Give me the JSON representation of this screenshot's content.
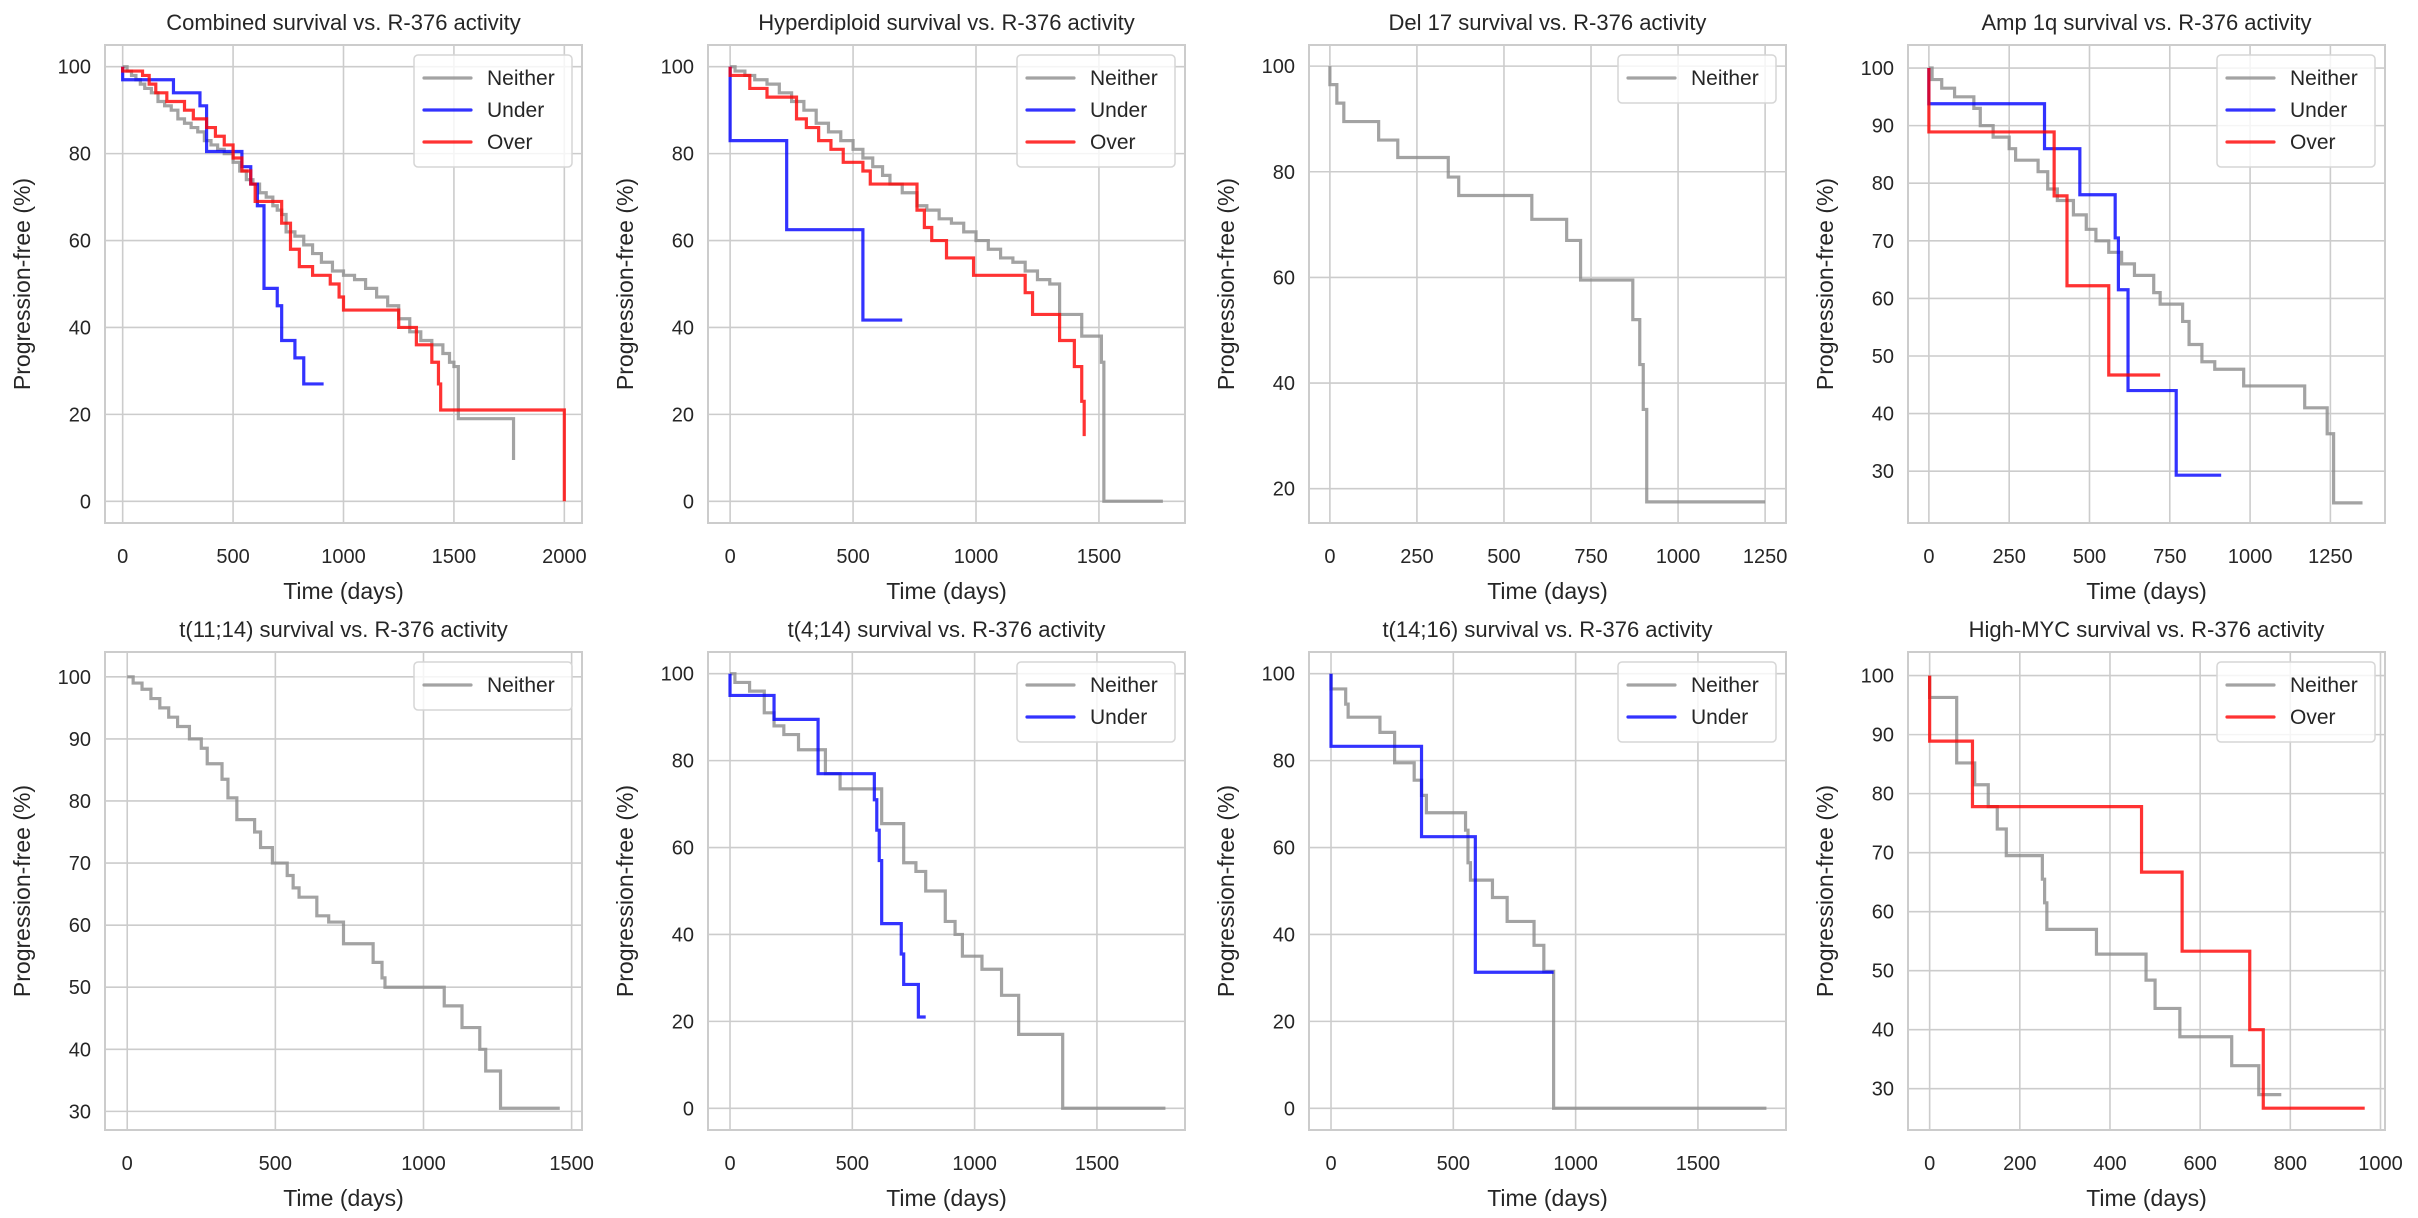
{
  "figure": {
    "colors": {
      "Neither": "#8c8c8c",
      "Under": "#0000ff",
      "Over": "#ff0000",
      "grid": "#cccccc",
      "spine": "#cccccc"
    }
  },
  "chart_data": [
    {
      "type": "line",
      "step": true,
      "title": "Combined survival vs. R-376 activity",
      "xlabel": "Time (days)",
      "ylabel": "Progression-free (%)",
      "xlim": [
        -80,
        2080
      ],
      "ylim": [
        -5,
        105
      ],
      "xticks": [
        0,
        500,
        1000,
        1500,
        2000
      ],
      "yticks": [
        0,
        20,
        40,
        60,
        80,
        100
      ],
      "grid": true,
      "legend": "top-right",
      "series": [
        {
          "name": "Neither",
          "x": [
            0,
            20,
            40,
            60,
            80,
            100,
            130,
            160,
            190,
            220,
            250,
            280,
            310,
            340,
            370,
            400,
            430,
            460,
            500,
            530,
            560,
            590,
            620,
            650,
            680,
            700,
            720,
            740,
            780,
            820,
            860,
            900,
            950,
            1000,
            1050,
            1100,
            1150,
            1200,
            1250,
            1300,
            1350,
            1400,
            1450,
            1480,
            1500,
            1520,
            1760,
            1770
          ],
          "y": [
            100,
            99,
            98,
            97,
            96,
            95,
            94,
            92,
            91,
            90,
            88,
            87,
            86,
            85,
            83,
            82,
            81,
            80,
            78,
            76,
            74,
            73,
            71,
            70,
            68,
            67,
            66,
            62,
            61,
            59,
            57,
            55,
            53,
            52,
            51,
            49,
            47,
            45,
            42,
            39,
            37,
            36,
            34,
            32,
            31,
            19,
            19,
            9.5
          ]
        },
        {
          "name": "Under",
          "x": [
            0,
            0,
            190,
            230,
            350,
            380,
            480,
            540,
            580,
            610,
            640,
            700,
            720,
            780,
            820,
            910
          ],
          "y": [
            100,
            97,
            97,
            94,
            91,
            80.5,
            80.5,
            77,
            73,
            68,
            49,
            45,
            37,
            33,
            27,
            27
          ]
        },
        {
          "name": "Over",
          "x": [
            0,
            0,
            90,
            120,
            150,
            200,
            280,
            320,
            380,
            420,
            460,
            500,
            540,
            580,
            600,
            700,
            720,
            760,
            800,
            860,
            940,
            980,
            1000,
            1200,
            1250,
            1330,
            1400,
            1430,
            1440,
            2000
          ],
          "y": [
            100,
            99,
            98,
            96,
            94,
            92,
            90,
            88,
            86,
            84,
            82,
            79,
            76,
            73,
            69,
            69,
            64,
            58,
            54,
            52,
            50,
            47,
            44,
            44,
            40,
            36,
            32,
            27,
            21,
            0
          ]
        }
      ]
    },
    {
      "type": "line",
      "step": true,
      "title": "Hyperdiploid survival vs. R-376 activity",
      "xlabel": "Time (days)",
      "ylabel": "Progression-free (%)",
      "xlim": [
        -90,
        1850
      ],
      "ylim": [
        -5,
        105
      ],
      "xticks": [
        0,
        500,
        1000,
        1500
      ],
      "yticks": [
        0,
        20,
        40,
        60,
        80,
        100
      ],
      "grid": true,
      "legend": "top-right",
      "series": [
        {
          "name": "Neither",
          "x": [
            0,
            20,
            60,
            100,
            150,
            200,
            250,
            300,
            350,
            400,
            450,
            500,
            540,
            580,
            620,
            650,
            700,
            760,
            800,
            850,
            900,
            950,
            1000,
            1050,
            1100,
            1150,
            1200,
            1250,
            1300,
            1340,
            1430,
            1510,
            1520,
            1760
          ],
          "y": [
            100,
            99,
            98,
            97,
            96,
            94,
            92,
            90,
            87,
            85,
            83,
            81,
            79,
            77,
            75,
            73,
            71,
            68,
            67,
            65,
            64,
            62,
            60,
            58,
            56,
            55,
            53,
            51,
            50,
            43,
            38,
            32,
            0,
            0
          ]
        },
        {
          "name": "Under",
          "x": [
            0,
            0,
            230,
            540,
            700
          ],
          "y": [
            100,
            83,
            62.5,
            41.7,
            41.7
          ]
        },
        {
          "name": "Over",
          "x": [
            0,
            0,
            80,
            150,
            270,
            310,
            360,
            410,
            460,
            540,
            570,
            760,
            790,
            820,
            880,
            990,
            1200,
            1230,
            1340,
            1400,
            1430,
            1440
          ],
          "y": [
            100,
            98,
            95,
            93,
            88,
            86,
            83,
            81,
            78,
            76,
            73,
            67,
            63,
            60,
            56,
            52,
            48,
            43,
            37,
            31,
            23,
            15
          ]
        }
      ]
    },
    {
      "type": "line",
      "step": true,
      "title": "Del 17 survival vs. R-376 activity",
      "xlabel": "Time (days)",
      "ylabel": "Progression-free (%)",
      "xlim": [
        -60,
        1310
      ],
      "ylim": [
        13.5,
        104
      ],
      "xticks": [
        0,
        250,
        500,
        750,
        1000,
        1250
      ],
      "yticks": [
        20,
        40,
        60,
        80,
        100
      ],
      "grid": true,
      "legend": "top-right",
      "series": [
        {
          "name": "Neither",
          "x": [
            0,
            0,
            20,
            40,
            140,
            195,
            340,
            370,
            580,
            680,
            720,
            870,
            890,
            900,
            910,
            1250
          ],
          "y": [
            100,
            96.5,
            93,
            89.5,
            86,
            82.7,
            79,
            75.5,
            71,
            67,
            59.5,
            52,
            43.5,
            35,
            17.5,
            17.5
          ]
        }
      ]
    },
    {
      "type": "line",
      "step": true,
      "title": "Amp 1q survival vs. R-376 activity",
      "xlabel": "Time (days)",
      "ylabel": "Progression-free (%)",
      "xlim": [
        -65,
        1420
      ],
      "ylim": [
        21,
        104
      ],
      "xticks": [
        0,
        250,
        500,
        750,
        1000,
        1250
      ],
      "yticks": [
        30,
        40,
        50,
        60,
        70,
        80,
        90,
        100
      ],
      "grid": true,
      "legend": "top-right",
      "series": [
        {
          "name": "Neither",
          "x": [
            0,
            10,
            40,
            80,
            140,
            160,
            200,
            250,
            270,
            340,
            370,
            400,
            450,
            490,
            520,
            560,
            600,
            640,
            700,
            720,
            790,
            810,
            850,
            890,
            980,
            1170,
            1240,
            1260,
            1350
          ],
          "y": [
            100,
            98,
            96.5,
            95,
            93,
            90,
            88,
            86,
            84,
            82,
            79,
            77,
            74.5,
            72,
            70,
            68,
            66,
            64,
            61,
            59,
            56,
            52,
            49,
            47.7,
            44.8,
            41,
            36.5,
            24.5,
            24.5
          ]
        },
        {
          "name": "Under",
          "x": [
            0,
            0,
            360,
            470,
            580,
            590,
            620,
            770,
            910
          ],
          "y": [
            100,
            93.8,
            86,
            78,
            70.5,
            61.5,
            44,
            29.3,
            29.3
          ]
        },
        {
          "name": "Over",
          "x": [
            0,
            0,
            390,
            430,
            560,
            720
          ],
          "y": [
            100,
            88.9,
            77.8,
            62.2,
            46.7,
            46.7
          ]
        }
      ]
    },
    {
      "type": "line",
      "step": true,
      "title": "t(11;14) survival vs. R-376 activity",
      "xlabel": "Time (days)",
      "ylabel": "Progression-free (%)",
      "xlim": [
        -75,
        1535
      ],
      "ylim": [
        27,
        104
      ],
      "xticks": [
        0,
        500,
        1000,
        1500
      ],
      "yticks": [
        30,
        40,
        50,
        60,
        70,
        80,
        90,
        100
      ],
      "grid": true,
      "legend": "top-right",
      "series": [
        {
          "name": "Neither",
          "x": [
            0,
            20,
            50,
            80,
            110,
            140,
            170,
            210,
            250,
            270,
            320,
            340,
            370,
            430,
            450,
            490,
            540,
            560,
            580,
            640,
            680,
            730,
            750,
            830,
            860,
            870,
            1070,
            1130,
            1190,
            1210,
            1260,
            1460
          ],
          "y": [
            100,
            99,
            98,
            96.5,
            95,
            93.5,
            92,
            90,
            88.5,
            86,
            83.5,
            80.5,
            77,
            75,
            72.5,
            70,
            68,
            66,
            64.5,
            61.5,
            60.5,
            57,
            57,
            54,
            51.5,
            50,
            47,
            43.5,
            40,
            36.5,
            30.5,
            30.5
          ]
        }
      ]
    },
    {
      "type": "line",
      "step": true,
      "title": "t(4;14) survival vs. R-376 activity",
      "xlabel": "Time (days)",
      "ylabel": "Progression-free (%)",
      "xlim": [
        -90,
        1860
      ],
      "ylim": [
        -5,
        105
      ],
      "xticks": [
        0,
        500,
        1000,
        1500
      ],
      "yticks": [
        0,
        20,
        40,
        60,
        80,
        100
      ],
      "grid": true,
      "legend": "top-right",
      "series": [
        {
          "name": "Neither",
          "x": [
            0,
            20,
            80,
            140,
            180,
            220,
            280,
            390,
            450,
            600,
            620,
            710,
            760,
            800,
            880,
            920,
            950,
            1030,
            1110,
            1180,
            1360,
            1780
          ],
          "y": [
            100,
            98,
            96,
            91,
            88,
            86,
            82.5,
            77,
            73.5,
            73.5,
            65.5,
            56.5,
            54.5,
            50,
            43,
            40,
            35,
            32,
            26,
            17,
            0,
            0
          ]
        },
        {
          "name": "Under",
          "x": [
            0,
            0,
            180,
            360,
            580,
            590,
            600,
            610,
            620,
            700,
            710,
            770,
            800
          ],
          "y": [
            100,
            95,
            89.5,
            77,
            77,
            71,
            64,
            57,
            42.5,
            35.5,
            28.5,
            21,
            21
          ]
        }
      ]
    },
    {
      "type": "line",
      "step": true,
      "title": "t(14;16) survival vs. R-376 activity",
      "xlabel": "Time (days)",
      "ylabel": "Progression-free (%)",
      "xlim": [
        -90,
        1860
      ],
      "ylim": [
        -5,
        105
      ],
      "xticks": [
        0,
        500,
        1000,
        1500
      ],
      "yticks": [
        0,
        20,
        40,
        60,
        80,
        100
      ],
      "grid": true,
      "legend": "top-right",
      "series": [
        {
          "name": "Neither",
          "x": [
            0,
            0,
            60,
            70,
            200,
            260,
            340,
            370,
            390,
            550,
            560,
            570,
            660,
            720,
            830,
            870,
            910,
            1780
          ],
          "y": [
            100,
            96.5,
            93,
            90,
            86.5,
            79.5,
            75.5,
            72,
            68,
            64,
            56.5,
            52.5,
            48.5,
            43,
            37.5,
            31.5,
            0,
            0
          ]
        },
        {
          "name": "Under",
          "x": [
            0,
            0,
            370,
            590,
            910
          ],
          "y": [
            100,
            83.3,
            62.5,
            31.3,
            31.3
          ]
        }
      ]
    },
    {
      "type": "line",
      "step": true,
      "title": "High-MYC survival vs. R-376 activity",
      "xlabel": "Time (days)",
      "ylabel": "Progression-free (%)",
      "xlim": [
        -48,
        1010
      ],
      "ylim": [
        23,
        104
      ],
      "xticks": [
        0,
        200,
        400,
        600,
        800,
        1000
      ],
      "yticks": [
        30,
        40,
        50,
        60,
        70,
        80,
        90,
        100
      ],
      "grid": true,
      "legend": "top-right",
      "series": [
        {
          "name": "Neither",
          "x": [
            0,
            0,
            60,
            100,
            130,
            150,
            170,
            250,
            255,
            260,
            370,
            480,
            500,
            555,
            670,
            730,
            780
          ],
          "y": [
            100,
            96.3,
            85.2,
            81.5,
            77.8,
            74,
            69.5,
            65.5,
            61.5,
            57,
            52.8,
            48.4,
            43.6,
            38.8,
            33.9,
            29,
            29
          ]
        },
        {
          "name": "Over",
          "x": [
            0,
            0,
            95,
            470,
            560,
            710,
            740,
            965
          ],
          "y": [
            100,
            88.9,
            77.8,
            66.7,
            53.3,
            40,
            26.7,
            26.7
          ]
        }
      ]
    }
  ]
}
